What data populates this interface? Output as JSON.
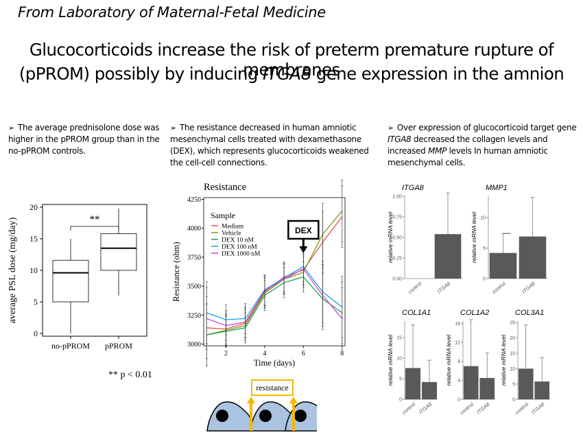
{
  "header": {
    "lab": "From Laboratory of Maternal-Fetal Medicine",
    "title_line1": "Glucocorticoids increase the risk of preterm premature rupture of membranes",
    "title_line2_pre": "(pPROM) possibly by inducing ",
    "title_line2_gene": "ITGA8",
    "title_line2_post": " gene expression in the amnion"
  },
  "columns": {
    "c1": {
      "arrow": "➢",
      "text": "The average prednisolone dose was higher in the pPROM group than in the no-pPROM controls."
    },
    "c2": {
      "arrow": "➢",
      "text": "The resistance decreased in human amniotic mesenchymal cells treated with dexamethasone (DEX), which represents glucocorticoids weakened the cell-cell connections."
    },
    "c3": {
      "arrow": "➢",
      "pre": "Over expression of glucocorticoid target gene ",
      "gene": "ITGA8",
      "mid": " decreased the collagen levels and increased ",
      "gene2": "MMP",
      "post": " levels In human amniotic mesenchymal cells."
    }
  },
  "colors": {
    "bar": "#595959",
    "medium": "#e8534a",
    "vehicle": "#7a9a1a",
    "dex10": "#1fa050",
    "dex100": "#1aa0d8",
    "dex1000": "#d040d8",
    "cell": "#aac3e0",
    "resistance_box": "#f5b800",
    "arrow": "#f5b800"
  },
  "chart_data": [
    {
      "type": "box",
      "ylabel": "average PSL dose (mg/day)",
      "yticks": [
        0,
        5,
        10,
        15,
        20
      ],
      "ylim": [
        0,
        20
      ],
      "categories": [
        "no-pPROM",
        "pPROM"
      ],
      "boxes": [
        {
          "min": 0,
          "q1": 5,
          "median": 9.6,
          "q3": 11.6,
          "max": 15
        },
        {
          "min": 6,
          "q1": 10,
          "median": 13.5,
          "q3": 15.8,
          "max": 19.8
        }
      ],
      "significance": "**",
      "footnote": "** p < 0.01"
    },
    {
      "type": "line",
      "title": "Resistance",
      "xlabel": "Time (days)",
      "ylabel": "Resistance (ohm)",
      "xticks": [
        2,
        4,
        6,
        8
      ],
      "yticks": [
        3000,
        3250,
        3500,
        3750,
        4000,
        4250
      ],
      "xlim": [
        0.85,
        8.15
      ],
      "ylim": [
        2985,
        4265
      ],
      "x": [
        1,
        2,
        3,
        4,
        5,
        6,
        7,
        8
      ],
      "legend_title": "Sample",
      "annotation": "DEX",
      "annotation_x": 6,
      "series": [
        {
          "name": "Medium",
          "values": [
            3140,
            3130,
            3180,
            3450,
            3580,
            3640,
            3880,
            4100
          ],
          "color": "#e8534a"
        },
        {
          "name": "Vehicle",
          "values": [
            3080,
            3120,
            3160,
            3440,
            3560,
            3620,
            3950,
            4150
          ],
          "color": "#7a9a1a"
        },
        {
          "name": "DEX 10 nM",
          "values": [
            3080,
            3110,
            3140,
            3420,
            3530,
            3580,
            3390,
            3270
          ],
          "color": "#1fa050"
        },
        {
          "name": "DEX 100 nM",
          "values": [
            3270,
            3210,
            3220,
            3470,
            3570,
            3670,
            3450,
            3320
          ],
          "color": "#1aa0d8"
        },
        {
          "name": "DEX 1000 nM",
          "values": [
            3220,
            3160,
            3190,
            3460,
            3560,
            3650,
            3420,
            3220
          ],
          "color": "#d040d8"
        }
      ]
    },
    {
      "type": "bar",
      "title": "ITGA8",
      "ylabel": "relative mRNA level",
      "categories": [
        "control",
        "ITGA8"
      ],
      "values": [
        0,
        0.54
      ],
      "errors": [
        0,
        0.5
      ],
      "ylim": [
        0,
        1.0
      ],
      "yticks": [
        "0.00",
        "0.25",
        "0.50",
        "0.75",
        "1.00"
      ]
    },
    {
      "type": "bar",
      "title": "MMP1",
      "ylabel": "relative mRNA level",
      "categories": [
        "control",
        "ITGA8"
      ],
      "values": [
        4.2,
        6.9
      ],
      "errors": [
        3.2,
        6.4
      ],
      "ylim": [
        0,
        13.5
      ],
      "yticks": [
        "0",
        "5",
        "10"
      ]
    },
    {
      "type": "bar",
      "title": "COL1A1",
      "ylabel": "relative mRNA level",
      "categories": [
        "control",
        "ITGA8"
      ],
      "values": [
        7.6,
        4.2
      ],
      "errors": [
        10.5,
        5.3
      ],
      "ylim": [
        0,
        19
      ],
      "yticks": [
        "0",
        "5",
        "10",
        "15"
      ]
    },
    {
      "type": "bar",
      "title": "COL1A2",
      "ylabel": "relative mRNA level",
      "categories": [
        "control",
        "ITGA8"
      ],
      "values": [
        7.0,
        4.5
      ],
      "errors": [
        9.8,
        5.3
      ],
      "ylim": [
        0,
        16.5
      ],
      "yticks": [
        "0",
        "4",
        "8",
        "12",
        "16"
      ]
    },
    {
      "type": "bar",
      "title": "COL3A1",
      "ylabel": "relative mRNA level",
      "categories": [
        "control",
        "ITGA8"
      ],
      "values": [
        10.0,
        5.8
      ],
      "errors": [
        14.2,
        7.8
      ],
      "ylim": [
        0,
        25.5
      ],
      "yticks": [
        "0",
        "5",
        "10",
        "15",
        "20",
        "25"
      ]
    }
  ],
  "diagram": {
    "label": "resistance"
  }
}
